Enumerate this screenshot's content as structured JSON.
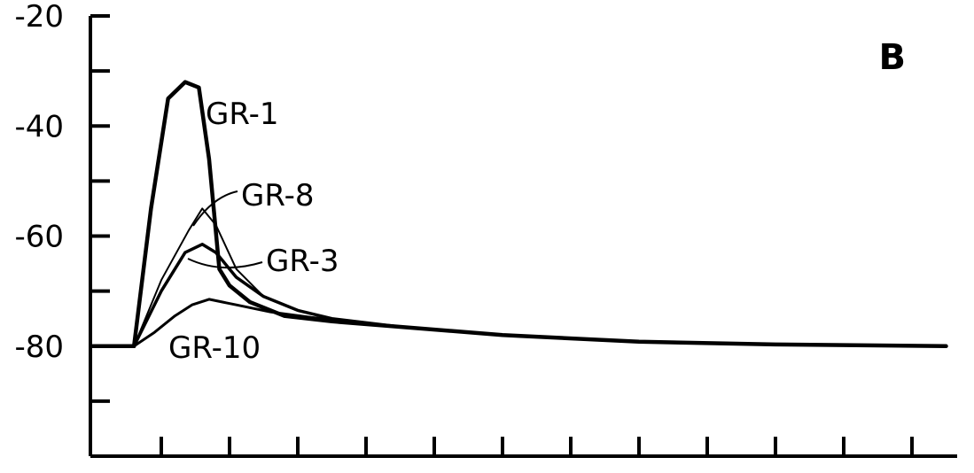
{
  "chart_data": {
    "type": "line",
    "panel_label": "B",
    "xlabel": "",
    "ylabel": "",
    "ylim": [
      -100,
      -20
    ],
    "yticks": [
      -20,
      -30,
      -40,
      -50,
      -60,
      -70,
      -80,
      -90
    ],
    "ytick_labels": [
      {
        "value": -20,
        "label": "-20"
      },
      {
        "value": -40,
        "label": "-40"
      },
      {
        "value": -60,
        "label": "-60"
      },
      {
        "value": -80,
        "label": "-80"
      }
    ],
    "xlim": [
      0,
      13
    ],
    "xticks": [
      1,
      2,
      3,
      4,
      5,
      6,
      7,
      8,
      9,
      10,
      11,
      12
    ],
    "grid": false,
    "series": [
      {
        "name": "GR-1",
        "stroke": "#000000",
        "width": 4.5,
        "x": [
          0,
          0.6,
          0.85,
          1.1,
          1.35,
          1.55,
          1.7,
          1.85,
          2.0,
          2.3,
          2.8,
          3.5,
          4.5,
          6,
          8,
          10,
          12.5
        ],
        "y": [
          -80,
          -80,
          -55,
          -35,
          -32,
          -33,
          -46,
          -66,
          -69,
          -72,
          -74.5,
          -75.5,
          -76.5,
          -78,
          -79.2,
          -79.7,
          -80
        ]
      },
      {
        "name": "GR-8",
        "stroke": "#000000",
        "width": 2,
        "x": [
          0,
          0.6,
          1.0,
          1.4,
          1.6,
          1.8,
          2.1,
          2.5,
          3.0,
          3.5,
          4.5
        ],
        "y": [
          -80,
          -80,
          -68,
          -59,
          -55,
          -58,
          -66,
          -71,
          -73.5,
          -75,
          -76.5
        ]
      },
      {
        "name": "GR-3",
        "stroke": "#000000",
        "width": 3.5,
        "x": [
          0,
          0.6,
          1.0,
          1.35,
          1.6,
          1.8,
          2.1,
          2.5,
          3.0,
          3.5,
          4.5
        ],
        "y": [
          -80,
          -80,
          -70,
          -63,
          -61.5,
          -63,
          -67.5,
          -71,
          -73.5,
          -75,
          -76.5
        ]
      },
      {
        "name": "GR-10",
        "stroke": "#000000",
        "width": 3,
        "x": [
          0,
          0.6,
          0.9,
          1.2,
          1.45,
          1.7,
          2.1,
          2.6,
          3.2,
          4.0,
          4.5
        ],
        "y": [
          -80,
          -80,
          -77.5,
          -74.5,
          -72.5,
          -71.5,
          -72.5,
          -73.8,
          -74.8,
          -75.8,
          -76.5
        ]
      }
    ],
    "annotations": [
      {
        "text": "GR-1",
        "series": "GR-1"
      },
      {
        "text": "GR-8",
        "series": "GR-8"
      },
      {
        "text": "GR-3",
        "series": "GR-3"
      },
      {
        "text": "GR-10",
        "series": "GR-10"
      }
    ]
  }
}
